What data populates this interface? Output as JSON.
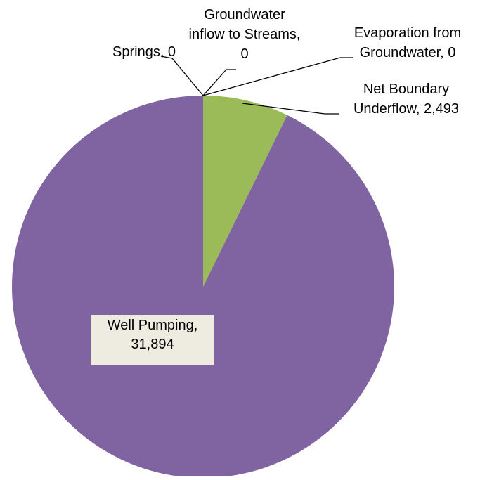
{
  "chart_data": {
    "type": "pie",
    "title": "",
    "slices": [
      {
        "label": "Well Pumping",
        "value": 31894,
        "value_text": "31,894",
        "color": "#8064A2"
      },
      {
        "label": "Springs",
        "value": 0,
        "value_text": "0",
        "color": "#4BACC6"
      },
      {
        "label": "Groundwater inflow to Streams",
        "value": 0,
        "value_text": "0",
        "color": "#C0504D"
      },
      {
        "label": "Evaporation from Groundwater",
        "value": 0,
        "value_text": "0",
        "color": "#F79646"
      },
      {
        "label": "Net Boundary Underflow",
        "value": 2493,
        "value_text": "2,493",
        "color": "#9BBB59"
      }
    ],
    "data_labels": [
      {
        "slice": "Well Pumping",
        "lines": [
          "Well Pumping,",
          "31,894"
        ],
        "boxed": true
      },
      {
        "slice": "Springs",
        "lines": [
          "Springs, 0"
        ],
        "boxed": false
      },
      {
        "slice": "Groundwater inflow to Streams",
        "lines": [
          "Groundwater",
          "inflow to Streams,",
          "0"
        ],
        "boxed": false
      },
      {
        "slice": "Evaporation from Groundwater",
        "lines": [
          "Evaporation from",
          "Groundwater, 0"
        ],
        "boxed": false
      },
      {
        "slice": "Net Boundary Underflow",
        "lines": [
          "Net Boundary",
          "Underflow, 2,493"
        ],
        "boxed": false
      }
    ],
    "legend": "none",
    "label_box_color": "#EEECE1"
  }
}
